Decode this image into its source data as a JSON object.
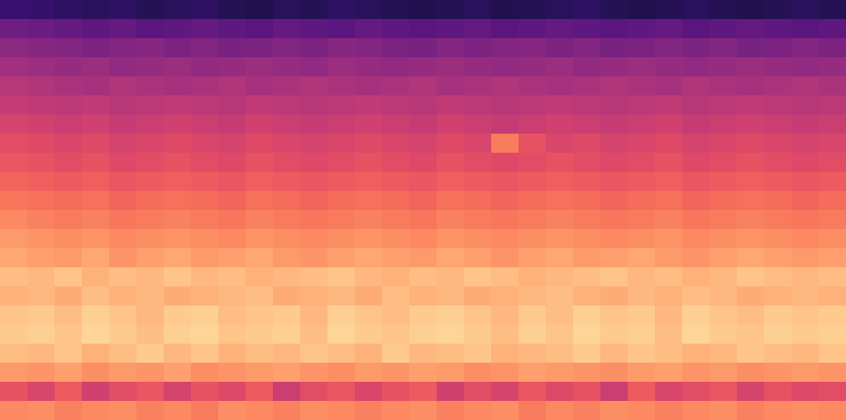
{
  "chart_data": {
    "type": "heatmap",
    "tick_labels": false,
    "zlim": [
      -80,
      0
    ],
    "values": [
      [
        -64,
        -65,
        -66,
        -67,
        -66,
        -68,
        -67,
        -66,
        -68,
        -69,
        -67,
        -68,
        -66,
        -67,
        -68,
        -69,
        -68,
        -67,
        -69,
        -68,
        -67,
        -66,
        -68,
        -69,
        -68,
        -67,
        -68,
        -69,
        -68,
        -67,
        -68
      ],
      [
        -54,
        -55,
        -56,
        -57,
        -56,
        -58,
        -57,
        -56,
        -57,
        -58,
        -56,
        -57,
        -58,
        -56,
        -57,
        -58,
        -57,
        -56,
        -58,
        -57,
        -56,
        -57,
        -58,
        -57,
        -56,
        -58,
        -57,
        -56,
        -57,
        -58,
        -57
      ],
      [
        -48,
        -49,
        -50,
        -51,
        -50,
        -49,
        -51,
        -50,
        -52,
        -51,
        -50,
        -51,
        -49,
        -50,
        -51,
        -52,
        -50,
        -51,
        -50,
        -49,
        -51,
        -50,
        -52,
        -51,
        -50,
        -51,
        -50,
        -52,
        -51,
        -50,
        -51
      ],
      [
        -44,
        -45,
        -46,
        -45,
        -47,
        -46,
        -45,
        -47,
        -46,
        -45,
        -46,
        -47,
        -45,
        -46,
        -47,
        -46,
        -45,
        -46,
        -47,
        -46,
        -45,
        -47,
        -46,
        -45,
        -46,
        -47,
        -46,
        -45,
        -46,
        -47,
        -46
      ],
      [
        -40,
        -41,
        -42,
        -43,
        -41,
        -42,
        -43,
        -42,
        -41,
        -43,
        -42,
        -41,
        -42,
        -43,
        -42,
        -41,
        -43,
        -42,
        -41,
        -42,
        -43,
        -42,
        -41,
        -42,
        -43,
        -41,
        -42,
        -43,
        -42,
        -41,
        -42
      ],
      [
        -37,
        -38,
        -39,
        -38,
        -40,
        -39,
        -38,
        -39,
        -40,
        -38,
        -39,
        -40,
        -39,
        -38,
        -39,
        -40,
        -38,
        -39,
        -40,
        -39,
        -38,
        -39,
        -40,
        -39,
        -38,
        -40,
        -39,
        -38,
        -39,
        -40,
        -39
      ],
      [
        -34,
        -35,
        -36,
        -35,
        -37,
        -36,
        -35,
        -36,
        -37,
        -35,
        -36,
        -37,
        -36,
        -35,
        -36,
        -37,
        -35,
        -36,
        -37,
        -36,
        -35,
        -36,
        -37,
        -36,
        -35,
        -37,
        -36,
        -35,
        -36,
        -37,
        -36
      ],
      [
        -31,
        -32,
        -33,
        -32,
        -34,
        -33,
        -32,
        -33,
        -34,
        -32,
        -33,
        -34,
        -33,
        -32,
        -33,
        -34,
        -32,
        -33,
        -22,
        -30,
        -33,
        -32,
        -34,
        -33,
        -32,
        -34,
        -33,
        -32,
        -33,
        -34,
        -33
      ],
      [
        -29,
        -30,
        -31,
        -30,
        -32,
        -31,
        -30,
        -31,
        -32,
        -30,
        -31,
        -32,
        -31,
        -30,
        -31,
        -32,
        -30,
        -31,
        -32,
        -31,
        -30,
        -31,
        -32,
        -31,
        -30,
        -32,
        -31,
        -30,
        -31,
        -32,
        -31
      ],
      [
        -26,
        -27,
        -28,
        -27,
        -29,
        -28,
        -27,
        -28,
        -29,
        -27,
        -28,
        -29,
        -28,
        -27,
        -28,
        -29,
        -27,
        -28,
        -29,
        -28,
        -27,
        -28,
        -29,
        -28,
        -27,
        -29,
        -28,
        -27,
        -28,
        -29,
        -28
      ],
      [
        -23,
        -24,
        -25,
        -24,
        -26,
        -25,
        -24,
        -25,
        -26,
        -24,
        -25,
        -26,
        -25,
        -24,
        -25,
        -26,
        -24,
        -25,
        -26,
        -25,
        -24,
        -25,
        -26,
        -25,
        -24,
        -26,
        -25,
        -24,
        -25,
        -26,
        -25
      ],
      [
        -20,
        -21,
        -22,
        -21,
        -23,
        -22,
        -21,
        -22,
        -23,
        -21,
        -22,
        -23,
        -22,
        -21,
        -22,
        -23,
        -21,
        -22,
        -23,
        -22,
        -21,
        -22,
        -23,
        -22,
        -21,
        -23,
        -22,
        -21,
        -22,
        -23,
        -22
      ],
      [
        -17,
        -18,
        -19,
        -18,
        -20,
        -19,
        -18,
        -19,
        -20,
        -18,
        -19,
        -20,
        -19,
        -18,
        -19,
        -20,
        -18,
        -19,
        -20,
        -19,
        -18,
        -19,
        -20,
        -19,
        -18,
        -20,
        -19,
        -18,
        -19,
        -20,
        -19
      ],
      [
        -15,
        -16,
        -17,
        -15,
        -18,
        -16,
        -15,
        -17,
        -16,
        -15,
        -17,
        -18,
        -16,
        -15,
        -16,
        -17,
        -15,
        -16,
        -18,
        -16,
        -15,
        -17,
        -16,
        -15,
        -17,
        -18,
        -16,
        -15,
        -16,
        -17,
        -16
      ],
      [
        -11,
        -12,
        -10,
        -13,
        -11,
        -12,
        -10,
        -12,
        -11,
        -13,
        -12,
        -11,
        -10,
        -12,
        -13,
        -11,
        -12,
        -10,
        -11,
        -13,
        -12,
        -11,
        -10,
        -12,
        -11,
        -13,
        -12,
        -10,
        -11,
        -12,
        -11
      ],
      [
        -13,
        -12,
        -14,
        -11,
        -13,
        -12,
        -14,
        -13,
        -12,
        -11,
        -14,
        -13,
        -12,
        -14,
        -11,
        -13,
        -12,
        -14,
        -13,
        -12,
        -11,
        -13,
        -14,
        -12,
        -13,
        -11,
        -12,
        -14,
        -13,
        -12,
        -13
      ],
      [
        -10,
        -9,
        -11,
        -8,
        -10,
        -12,
        -9,
        -8,
        -11,
        -10,
        -9,
        -12,
        -8,
        -10,
        -11,
        -9,
        -8,
        -10,
        -12,
        -9,
        -11,
        -8,
        -10,
        -9,
        -12,
        -8,
        -10,
        -11,
        -9,
        -10,
        -9
      ],
      [
        -9,
        -8,
        -10,
        -7,
        -9,
        -11,
        -8,
        -7,
        -10,
        -9,
        -8,
        -11,
        -7,
        -9,
        -10,
        -8,
        -7,
        -9,
        -11,
        -8,
        -10,
        -7,
        -9,
        -8,
        -11,
        -7,
        -9,
        -10,
        -8,
        -9,
        -8
      ],
      [
        -11,
        -12,
        -10,
        -13,
        -11,
        -9,
        -12,
        -10,
        -13,
        -11,
        -12,
        -10,
        -11,
        -13,
        -9,
        -12,
        -11,
        -10,
        -13,
        -12,
        -11,
        -9,
        -12,
        -10,
        -11,
        -13,
        -12,
        -10,
        -11,
        -12,
        -10
      ],
      [
        -17,
        -18,
        -16,
        -19,
        -17,
        -18,
        -16,
        -19,
        -18,
        -17,
        -16,
        -18,
        -19,
        -17,
        -18,
        -16,
        -17,
        -19,
        -18,
        -16,
        -17,
        -18,
        -19,
        -17,
        -16,
        -18,
        -17,
        -19,
        -18,
        -17,
        -18
      ],
      [
        -30,
        -33,
        -28,
        -35,
        -31,
        -29,
        -34,
        -30,
        -32,
        -28,
        -36,
        -31,
        -29,
        -33,
        -30,
        -28,
        -35,
        -31,
        -34,
        -29,
        -32,
        -30,
        -36,
        -28,
        -33,
        -31,
        -29,
        -34,
        -30,
        -32,
        -31
      ],
      [
        -20,
        -19,
        -21,
        -20,
        -19,
        -21,
        -20,
        -22,
        -19,
        -20,
        -21,
        -19,
        -20,
        -21,
        -20,
        -19,
        -21,
        -20,
        -19,
        -22,
        -20,
        -21,
        -19,
        -20,
        -21,
        -20,
        -19,
        -21,
        -20,
        -19,
        -20
      ]
    ]
  }
}
